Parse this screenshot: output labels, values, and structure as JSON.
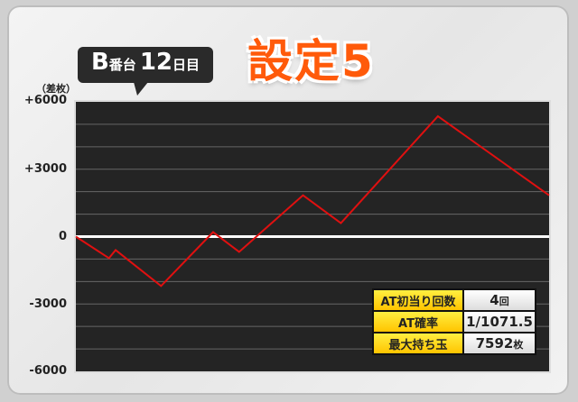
{
  "header": {
    "machine": "B",
    "machine_suffix": "番台",
    "day": "12",
    "day_suffix": "日目",
    "setting_label": "設定5"
  },
  "chart_data": {
    "type": "line",
    "ylabel": "（差枚）",
    "ylim": [
      -6000,
      6000
    ],
    "yticks": [
      "+6000",
      "+3000",
      "0",
      "-3000",
      "-6000"
    ],
    "ytick_values": [
      6000,
      3000,
      0,
      -3000,
      -6000
    ],
    "grid": true,
    "colors": {
      "line": "#e01010",
      "background": "#242424",
      "grid": "#666666",
      "zero": "#ffffff"
    },
    "x": [
      0,
      7,
      8.4,
      18,
      29,
      34.5,
      48,
      56,
      76.5,
      100
    ],
    "values": [
      0,
      -960,
      -600,
      -2200,
      200,
      -680,
      1840,
      600,
      5360,
      1840
    ]
  },
  "stats": [
    {
      "label": "AT初当り回数",
      "value": "4",
      "unit": "回"
    },
    {
      "label": "AT確率",
      "value": "1/1071.5",
      "unit": ""
    },
    {
      "label": "最大持ち玉",
      "value": "7592",
      "unit": "枚"
    }
  ]
}
